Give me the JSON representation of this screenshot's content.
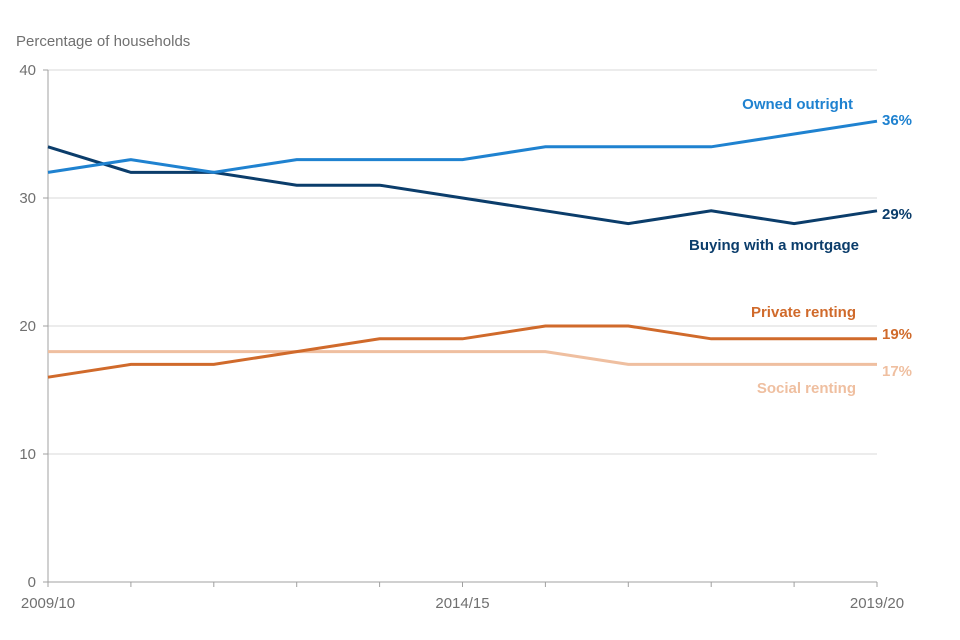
{
  "chart_data": {
    "type": "line",
    "title": "",
    "ylabel": "Percentage of households",
    "xlabel": "",
    "ylim": [
      0,
      40
    ],
    "yticks": [
      0,
      10,
      20,
      30,
      40
    ],
    "grid": true,
    "x": [
      "2009/10",
      "2010/11",
      "2011/12",
      "2012/13",
      "2013/14",
      "2014/15",
      "2015/16",
      "2016/17",
      "2017/18",
      "2018/19",
      "2019/20"
    ],
    "xtick_labels": [
      "2009/10",
      "2014/15",
      "2019/20"
    ],
    "legend": "inline-right",
    "series": [
      {
        "name": "Owned outright",
        "color": "#1F82D0",
        "values": [
          32,
          33,
          32,
          33,
          33,
          33,
          34,
          34,
          34,
          35,
          36
        ],
        "end_label": "36%"
      },
      {
        "name": "Buying with a mortgage",
        "color": "#0B3D6B",
        "values": [
          34,
          32,
          32,
          31,
          31,
          30,
          29,
          28,
          29,
          28,
          29
        ],
        "end_label": "29%"
      },
      {
        "name": "Private renting",
        "color": "#D06A2B",
        "values": [
          16,
          17,
          17,
          18,
          19,
          19,
          20,
          20,
          19,
          19,
          19
        ],
        "end_label": "19%"
      },
      {
        "name": "Social renting",
        "color": "#EFBFA0",
        "values": [
          18,
          18,
          18,
          18,
          18,
          18,
          18,
          17,
          17,
          17,
          17
        ],
        "end_label": "17%"
      }
    ]
  }
}
